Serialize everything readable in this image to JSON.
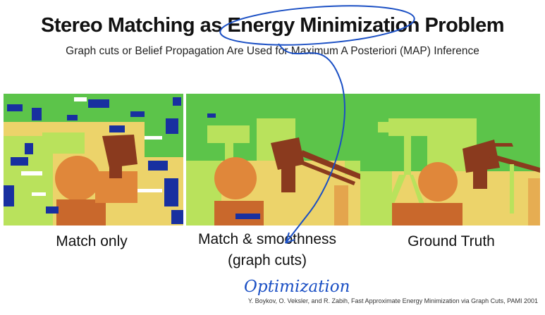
{
  "slide": {
    "title": "Stereo Matching as Energy Minimization Problem",
    "subtitle": "Graph cuts or Belief Propagation Are Used for Maximum A Posteriori (MAP) Inference",
    "panels": [
      {
        "caption": "Match only"
      },
      {
        "caption_line1": "Match & smoothness",
        "caption_line2": "(graph cuts)"
      },
      {
        "caption": "Ground Truth"
      }
    ],
    "citation": "Y. Boykov, O. Veksler, and R. Zabih, Fast Approximate Energy Minimization via Graph Cuts, PAMI 2001",
    "handwritten_note": "Optimization",
    "colors": {
      "background_green": "#5cc44a",
      "light_green": "#b9e25c",
      "yellow": "#ecd36a",
      "orange": "#e0873a",
      "dark_orange": "#c9682c",
      "brown": "#8a3a1e",
      "blue": "#1830a0",
      "annotation_blue": "#1a4fc4"
    }
  }
}
